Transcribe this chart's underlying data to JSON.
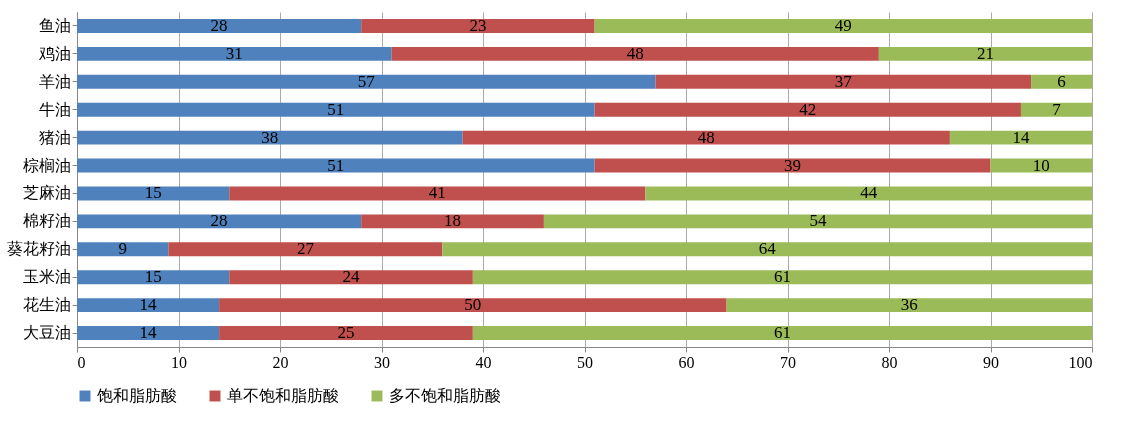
{
  "chart_data": {
    "type": "bar",
    "orientation": "horizontal",
    "stacked": true,
    "data_labels": true,
    "grid": "x",
    "legend": "bottom",
    "categories": [
      "鱼油",
      "鸡油",
      "羊油",
      "牛油",
      "猪油",
      "棕榈油",
      "芝麻油",
      "棉籽油",
      "葵花籽油",
      "玉米油",
      "花生油",
      "大豆油"
    ],
    "xlim": [
      0,
      100
    ],
    "xticks": [
      0,
      10,
      20,
      30,
      40,
      50,
      60,
      70,
      80,
      90,
      100
    ],
    "series": [
      {
        "name": "饱和脂肪酸",
        "color": "#4f81bd",
        "values": [
          28,
          31,
          57,
          51,
          38,
          51,
          15,
          28,
          9,
          15,
          14,
          14
        ]
      },
      {
        "name": "单不饱和脂肪酸",
        "color": "#c0504d",
        "values": [
          23,
          48,
          37,
          42,
          48,
          39,
          41,
          18,
          27,
          24,
          50,
          25
        ]
      },
      {
        "name": "多不饱和脂肪酸",
        "color": "#9bbb59",
        "values": [
          49,
          21,
          6,
          7,
          14,
          10,
          44,
          54,
          64,
          61,
          36,
          61
        ]
      }
    ]
  }
}
